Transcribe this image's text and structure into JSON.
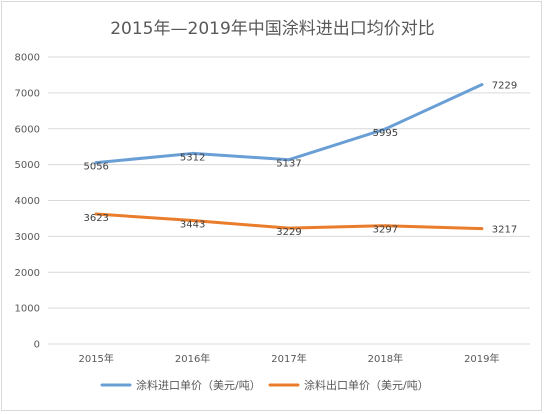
{
  "chart_data": {
    "type": "line",
    "title": "2015年—2019年中国涂料进出口均价对比",
    "categories": [
      "2015年",
      "2016年",
      "2017年",
      "2018年",
      "2019年"
    ],
    "ylim": [
      0,
      8000
    ],
    "yticks": [
      0,
      1000,
      2000,
      3000,
      4000,
      5000,
      6000,
      7000,
      8000
    ],
    "grid": true,
    "legend_position": "bottom",
    "series": [
      {
        "name": "涂料进口单价（美元/吨）",
        "color": "#6a9fd6",
        "values": [
          5056,
          5312,
          5137,
          5995,
          7229
        ]
      },
      {
        "name": "涂料出口单价（美元/吨）",
        "color": "#ea7d2c",
        "values": [
          3623,
          3443,
          3229,
          3297,
          3217
        ]
      }
    ]
  }
}
